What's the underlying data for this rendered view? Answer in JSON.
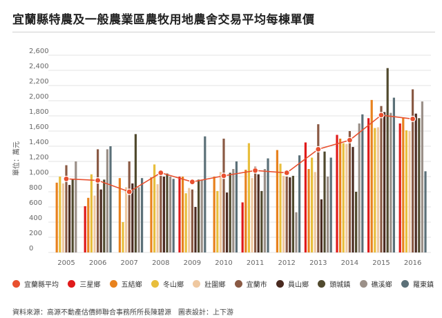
{
  "title": "宜蘭縣特農及一般農業區農牧用地農舍交易平均每棟單價",
  "source": "資料來源：高源不動產估價師聯合事務所所長陳碧源　圖表設計：上下游",
  "chart_data": {
    "type": "bar",
    "ylabel": "單位：萬元",
    "ylim": [
      0,
      2600
    ],
    "yticks": [
      0,
      200,
      400,
      600,
      800,
      1000,
      1200,
      1400,
      1600,
      1800,
      2000,
      2200,
      2400,
      2600
    ],
    "ytick_labels": [
      "0",
      "200",
      "400",
      "600",
      "800",
      "1,000",
      "1,200",
      "1,400",
      "1,600",
      "1,800",
      "2,000",
      "2,200",
      "2,400",
      "2,600"
    ],
    "categories": [
      "2005",
      "2006",
      "2007",
      "2008",
      "2009",
      "2010",
      "2011",
      "2012",
      "2013",
      "2014",
      "2015",
      "2016"
    ],
    "grid": true,
    "legend_position": "bottom",
    "line": {
      "name": "宜蘭縣平均",
      "color": "#e8502f",
      "values": [
        970,
        950,
        800,
        1050,
        930,
        1010,
        1080,
        1050,
        1360,
        1480,
        1810,
        1760
      ]
    },
    "series": [
      {
        "name": "三星鄉",
        "color": "#e01a1a",
        "values": [
          null,
          610,
          null,
          null,
          1000,
          null,
          660,
          null,
          1450,
          1550,
          1770,
          1700
        ]
      },
      {
        "name": "五結鄉",
        "color": "#e8821e",
        "values": [
          920,
          720,
          980,
          990,
          1000,
          1000,
          1090,
          1350,
          1100,
          1500,
          2010,
          1780
        ]
      },
      {
        "name": "冬山鄉",
        "color": "#e8be3c",
        "values": [
          1000,
          1030,
          400,
          1160,
          780,
          810,
          1440,
          1170,
          1250,
          1440,
          1640,
          1610
        ]
      },
      {
        "name": "壯圍鄉",
        "color": "#efc8a0",
        "values": [
          910,
          750,
          860,
          900,
          850,
          1060,
          980,
          1010,
          1060,
          1430,
          1650,
          1600
        ]
      },
      {
        "name": "宜蘭市",
        "color": "#8a5a44",
        "values": [
          1150,
          1360,
          1200,
          1010,
          830,
          1500,
          1130,
          1000,
          1690,
          1600,
          1930,
          2150
        ]
      },
      {
        "name": "員山鄉",
        "color": "#4a2a20",
        "values": [
          890,
          830,
          910,
          1000,
          600,
          790,
          1030,
          990,
          700,
          1390,
          1850,
          1830
        ]
      },
      {
        "name": "頭城鎮",
        "color": "#514a2e",
        "values": [
          960,
          960,
          1560,
          1040,
          960,
          1050,
          810,
          1010,
          1330,
          800,
          2430,
          1770
        ]
      },
      {
        "name": "礁溪鄉",
        "color": "#9b9088",
        "values": [
          1200,
          1360,
          860,
          1000,
          960,
          1100,
          1100,
          530,
          1000,
          1700,
          1840,
          1990
        ]
      },
      {
        "name": "羅東鎮",
        "color": "#5b7078",
        "values": [
          null,
          1400,
          980,
          970,
          1530,
          1200,
          1240,
          1280,
          1250,
          1820,
          2040,
          1070
        ]
      }
    ]
  }
}
